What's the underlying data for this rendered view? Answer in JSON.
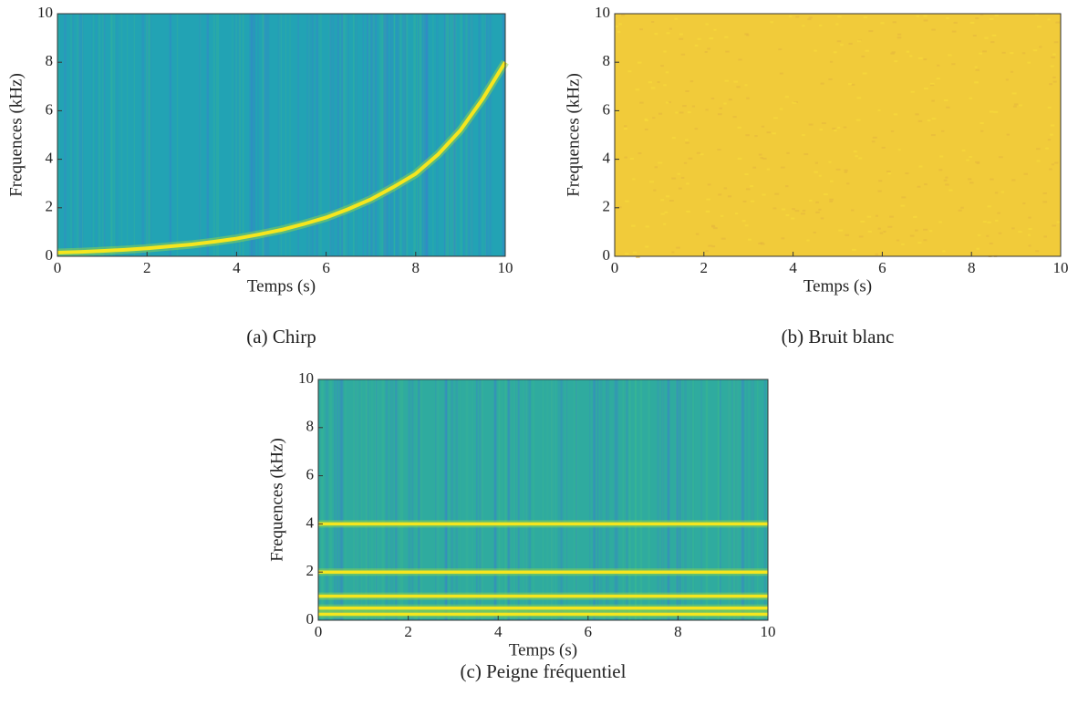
{
  "chart_data": [
    {
      "type": "line",
      "caption": "(a) Chirp",
      "xlabel": "Temps (s)",
      "ylabel": "Frequences (kHz)",
      "x": [
        0,
        0.5,
        1,
        1.5,
        2,
        2.5,
        3,
        3.5,
        4,
        4.5,
        5,
        5.5,
        6,
        6.5,
        7,
        7.5,
        8,
        8.5,
        9,
        9.5,
        10
      ],
      "values": [
        0.15,
        0.18,
        0.22,
        0.27,
        0.33,
        0.41,
        0.49,
        0.6,
        0.73,
        0.9,
        1.09,
        1.33,
        1.6,
        1.95,
        2.35,
        2.85,
        3.4,
        4.2,
        5.2,
        6.5,
        8.0
      ],
      "color": "#f5e61e",
      "background": "#22a3b4",
      "xlim": [
        0,
        10
      ],
      "ylim": [
        0,
        10
      ],
      "xticks": [
        0,
        2,
        4,
        6,
        8,
        10
      ],
      "yticks": [
        0,
        2,
        4,
        6,
        8,
        10
      ]
    },
    {
      "type": "heatmap",
      "caption": "(b) Bruit blanc",
      "xlabel": "Temps (s)",
      "ylabel": "Frequences (kHz)",
      "background": "#f1cb3a",
      "xlim": [
        0,
        10
      ],
      "ylim": [
        0,
        10
      ],
      "xticks": [
        0,
        2,
        4,
        6,
        8,
        10
      ],
      "yticks": [
        0,
        2,
        4,
        6,
        8,
        10
      ]
    },
    {
      "type": "hline",
      "caption": "(c) Peigne fréquentiel",
      "xlabel": "Temps (s)",
      "ylabel": "Frequences (kHz)",
      "values": [
        0.25,
        0.5,
        1,
        2,
        4
      ],
      "color": "#f5e61e",
      "background": "#2fab9f",
      "xlim": [
        0,
        10
      ],
      "ylim": [
        0,
        10
      ],
      "xticks": [
        0,
        2,
        4,
        6,
        8,
        10
      ],
      "yticks": [
        0,
        2,
        4,
        6,
        8,
        10
      ]
    }
  ]
}
